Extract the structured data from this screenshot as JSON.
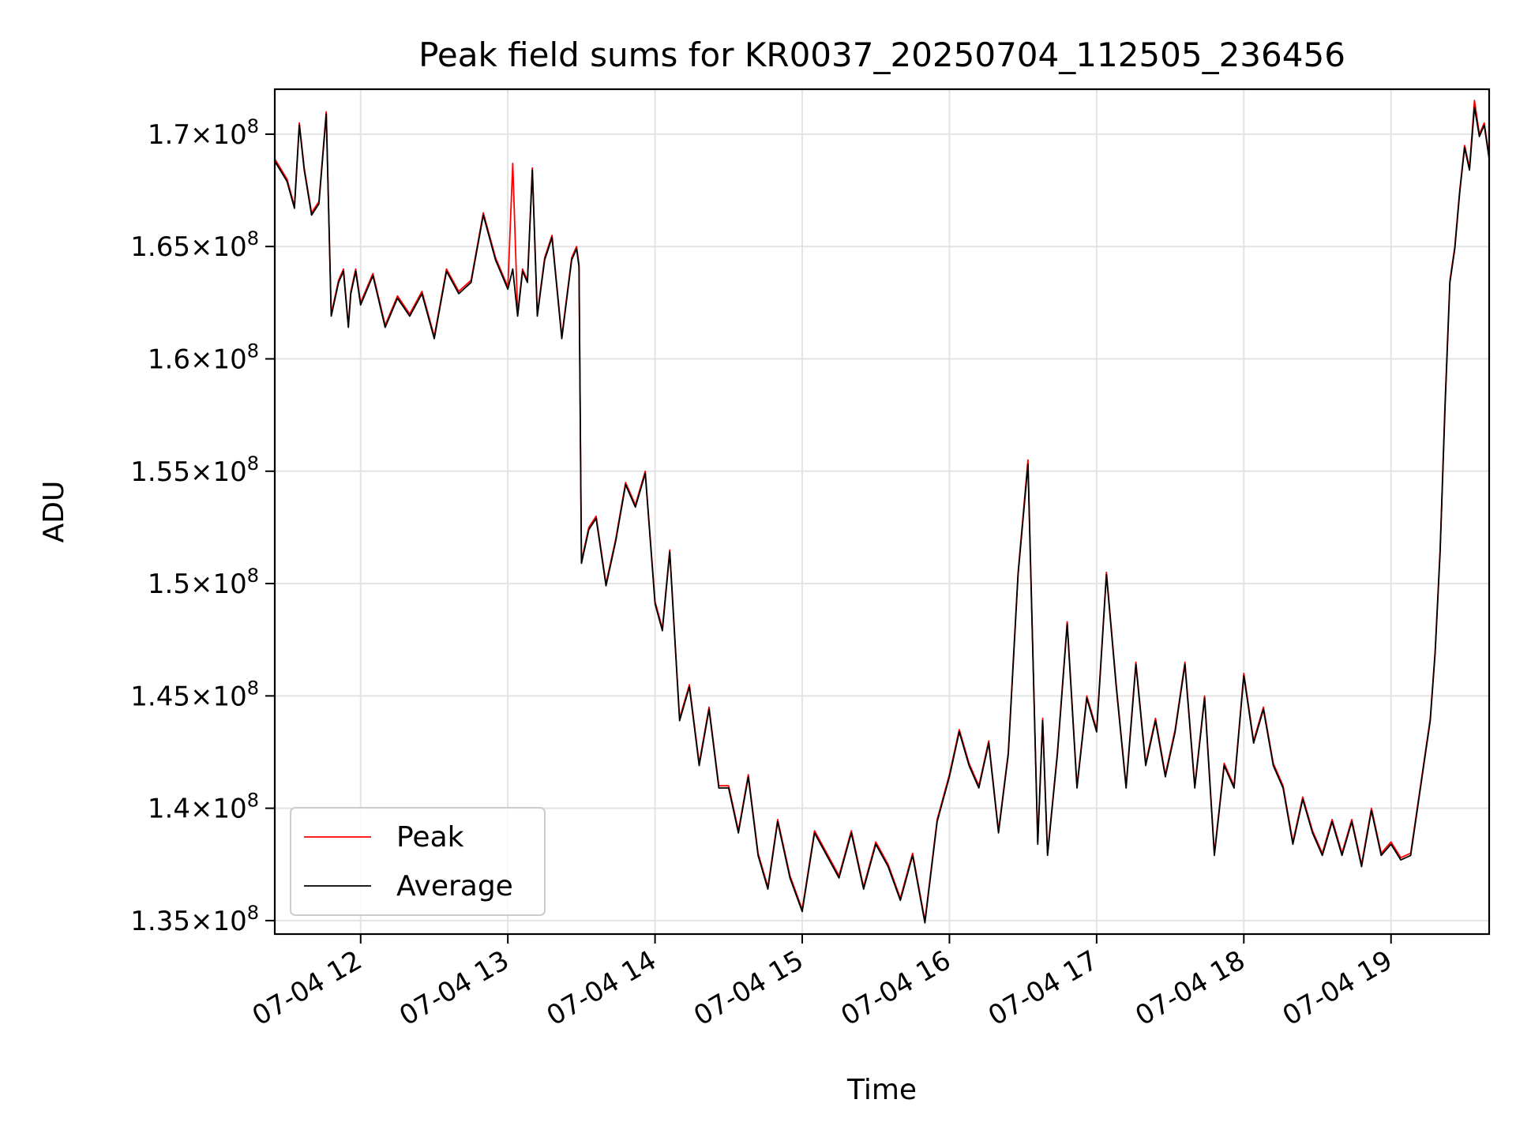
{
  "chart_data": {
    "type": "line",
    "title": "Peak field sums for KR0037_20250704_112505_236456",
    "xlabel": "Time",
    "ylabel": "ADU",
    "grid": true,
    "legend_position": "lower-left",
    "xlim": [
      "2025-07-04 11:25",
      "2025-07-04 19:40"
    ],
    "ylim": [
      134400000,
      172000000
    ],
    "x_ticks": [
      {
        "value": "2025-07-04 12:00",
        "label": "07-04 12"
      },
      {
        "value": "2025-07-04 13:00",
        "label": "07-04 13"
      },
      {
        "value": "2025-07-04 14:00",
        "label": "07-04 14"
      },
      {
        "value": "2025-07-04 15:00",
        "label": "07-04 15"
      },
      {
        "value": "2025-07-04 16:00",
        "label": "07-04 16"
      },
      {
        "value": "2025-07-04 17:00",
        "label": "07-04 17"
      },
      {
        "value": "2025-07-04 18:00",
        "label": "07-04 18"
      },
      {
        "value": "2025-07-04 19:00",
        "label": "07-04 19"
      }
    ],
    "y_ticks": [
      {
        "value": 135000000,
        "mantissa": "1.35",
        "exponent": "8"
      },
      {
        "value": 140000000,
        "mantissa": "1.4",
        "exponent": "8"
      },
      {
        "value": 145000000,
        "mantissa": "1.45",
        "exponent": "8"
      },
      {
        "value": 150000000,
        "mantissa": "1.5",
        "exponent": "8"
      },
      {
        "value": 155000000,
        "mantissa": "1.55",
        "exponent": "8"
      },
      {
        "value": 160000000,
        "mantissa": "1.6",
        "exponent": "8"
      },
      {
        "value": 165000000,
        "mantissa": "1.65",
        "exponent": "8"
      },
      {
        "value": 170000000,
        "mantissa": "1.7",
        "exponent": "8"
      }
    ],
    "series": [
      {
        "name": "Peak",
        "color": "#ff0000",
        "x": [
          "11:25",
          "11:30",
          "11:33",
          "11:35",
          "11:37",
          "11:40",
          "11:43",
          "11:46",
          "11:48",
          "11:51",
          "11:53",
          "11:55",
          "11:56",
          "11:58",
          "12:00",
          "12:05",
          "12:10",
          "12:15",
          "12:20",
          "12:25",
          "12:30",
          "12:35",
          "12:40",
          "12:45",
          "12:50",
          "12:55",
          "13:00",
          "13:02",
          "13:04",
          "13:06",
          "13:08",
          "13:10",
          "13:12",
          "13:15",
          "13:18",
          "13:22",
          "13:26",
          "13:28",
          "13:29",
          "13:30",
          "13:33",
          "13:36",
          "13:40",
          "13:44",
          "13:48",
          "13:52",
          "13:56",
          "14:00",
          "14:03",
          "14:06",
          "14:10",
          "14:14",
          "14:18",
          "14:22",
          "14:26",
          "14:30",
          "14:34",
          "14:38",
          "14:42",
          "14:46",
          "14:50",
          "14:55",
          "15:00",
          "15:05",
          "15:10",
          "15:15",
          "15:20",
          "15:25",
          "15:30",
          "15:35",
          "15:40",
          "15:45",
          "15:50",
          "15:55",
          "16:00",
          "16:04",
          "16:08",
          "16:12",
          "16:16",
          "16:20",
          "16:24",
          "16:28",
          "16:32",
          "16:36",
          "16:38",
          "16:40",
          "16:44",
          "16:48",
          "16:52",
          "16:56",
          "17:00",
          "17:04",
          "17:08",
          "17:12",
          "17:16",
          "17:20",
          "17:24",
          "17:28",
          "17:32",
          "17:36",
          "17:40",
          "17:44",
          "17:48",
          "17:52",
          "17:56",
          "18:00",
          "18:04",
          "18:08",
          "18:12",
          "18:16",
          "18:20",
          "18:24",
          "18:28",
          "18:32",
          "18:36",
          "18:40",
          "18:44",
          "18:48",
          "18:52",
          "18:56",
          "19:00",
          "19:04",
          "19:08",
          "19:10",
          "19:12",
          "19:14",
          "19:16",
          "19:18",
          "19:20",
          "19:22",
          "19:24",
          "19:26",
          "19:28",
          "19:30",
          "19:32",
          "19:34",
          "19:36",
          "19:38",
          "19:40"
        ],
        "y": [
          168900000,
          168000000,
          166800000,
          170500000,
          168500000,
          166500000,
          167000000,
          171000000,
          162000000,
          163500000,
          164000000,
          161500000,
          163000000,
          164000000,
          162500000,
          163800000,
          161500000,
          162800000,
          162000000,
          163000000,
          161000000,
          164000000,
          163000000,
          163500000,
          166500000,
          164500000,
          163200000,
          168700000,
          162000000,
          164000000,
          163500000,
          168500000,
          162000000,
          164500000,
          165500000,
          161000000,
          164500000,
          165000000,
          164200000,
          151000000,
          152500000,
          153000000,
          150000000,
          152000000,
          154500000,
          153500000,
          155000000,
          149200000,
          148000000,
          151500000,
          144000000,
          145500000,
          142000000,
          144500000,
          141000000,
          141000000,
          139000000,
          141500000,
          138000000,
          136500000,
          139500000,
          137000000,
          135500000,
          139000000,
          138000000,
          137000000,
          139000000,
          136500000,
          138500000,
          137500000,
          136000000,
          138000000,
          135000000,
          139500000,
          141500000,
          143500000,
          142000000,
          141000000,
          143000000,
          139000000,
          142500000,
          150500000,
          155500000,
          138500000,
          144000000,
          138000000,
          142500000,
          148300000,
          141000000,
          145000000,
          143500000,
          150500000,
          145500000,
          141000000,
          146500000,
          142000000,
          144000000,
          141500000,
          143500000,
          146500000,
          141000000,
          145000000,
          138000000,
          142000000,
          141000000,
          146000000,
          143000000,
          144500000,
          142000000,
          141000000,
          138500000,
          140500000,
          139000000,
          138000000,
          139500000,
          138000000,
          139500000,
          137500000,
          140000000,
          138000000,
          138500000,
          137800000,
          138000000,
          139500000,
          141000000,
          142500000,
          144000000,
          147000000,
          151500000,
          158000000,
          163500000,
          165000000,
          167500000,
          169500000,
          168500000,
          171500000,
          170000000,
          170500000,
          169000000
        ]
      },
      {
        "name": "Average",
        "color": "#000000",
        "x": [
          "11:25",
          "11:30",
          "11:33",
          "11:35",
          "11:37",
          "11:40",
          "11:43",
          "11:46",
          "11:48",
          "11:51",
          "11:53",
          "11:55",
          "11:56",
          "11:58",
          "12:00",
          "12:05",
          "12:10",
          "12:15",
          "12:20",
          "12:25",
          "12:30",
          "12:35",
          "12:40",
          "12:45",
          "12:50",
          "12:55",
          "13:00",
          "13:02",
          "13:04",
          "13:06",
          "13:08",
          "13:10",
          "13:12",
          "13:15",
          "13:18",
          "13:22",
          "13:26",
          "13:28",
          "13:29",
          "13:30",
          "13:33",
          "13:36",
          "13:40",
          "13:44",
          "13:48",
          "13:52",
          "13:56",
          "14:00",
          "14:03",
          "14:06",
          "14:10",
          "14:14",
          "14:18",
          "14:22",
          "14:26",
          "14:30",
          "14:34",
          "14:38",
          "14:42",
          "14:46",
          "14:50",
          "14:55",
          "15:00",
          "15:05",
          "15:10",
          "15:15",
          "15:20",
          "15:25",
          "15:30",
          "15:35",
          "15:40",
          "15:45",
          "15:50",
          "15:55",
          "16:00",
          "16:04",
          "16:08",
          "16:12",
          "16:16",
          "16:20",
          "16:24",
          "16:28",
          "16:32",
          "16:36",
          "16:38",
          "16:40",
          "16:44",
          "16:48",
          "16:52",
          "16:56",
          "17:00",
          "17:04",
          "17:08",
          "17:12",
          "17:16",
          "17:20",
          "17:24",
          "17:28",
          "17:32",
          "17:36",
          "17:40",
          "17:44",
          "17:48",
          "17:52",
          "17:56",
          "18:00",
          "18:04",
          "18:08",
          "18:12",
          "18:16",
          "18:20",
          "18:24",
          "18:28",
          "18:32",
          "18:36",
          "18:40",
          "18:44",
          "18:48",
          "18:52",
          "18:56",
          "19:00",
          "19:04",
          "19:08",
          "19:10",
          "19:12",
          "19:14",
          "19:16",
          "19:18",
          "19:20",
          "19:22",
          "19:24",
          "19:26",
          "19:28",
          "19:30",
          "19:32",
          "19:34",
          "19:36",
          "19:38",
          "19:40"
        ],
        "y": [
          168800000,
          167900000,
          166700000,
          170400000,
          168400000,
          166400000,
          166900000,
          170900000,
          161900000,
          163400000,
          163900000,
          161400000,
          162900000,
          163900000,
          162400000,
          163700000,
          161400000,
          162700000,
          161900000,
          162900000,
          160900000,
          163900000,
          162900000,
          163400000,
          166400000,
          164400000,
          163100000,
          164000000,
          161900000,
          163900000,
          163400000,
          168400000,
          161900000,
          164400000,
          165400000,
          160900000,
          164400000,
          164900000,
          164100000,
          150900000,
          152400000,
          152900000,
          149900000,
          151900000,
          154400000,
          153400000,
          154900000,
          149100000,
          147900000,
          151400000,
          143900000,
          145400000,
          141900000,
          144400000,
          140900000,
          140900000,
          138900000,
          141400000,
          137900000,
          136400000,
          139400000,
          136900000,
          135400000,
          138900000,
          137900000,
          136900000,
          138900000,
          136400000,
          138400000,
          137400000,
          135900000,
          137900000,
          134900000,
          139400000,
          141400000,
          143400000,
          141900000,
          140900000,
          142900000,
          138900000,
          142400000,
          150400000,
          155300000,
          138400000,
          143900000,
          137900000,
          142400000,
          148200000,
          140900000,
          144900000,
          143400000,
          150400000,
          145400000,
          140900000,
          146400000,
          141900000,
          143900000,
          141400000,
          143400000,
          146400000,
          140900000,
          144900000,
          137900000,
          141900000,
          140900000,
          145900000,
          142900000,
          144400000,
          141900000,
          140900000,
          138400000,
          140400000,
          138900000,
          137900000,
          139400000,
          137900000,
          139400000,
          137400000,
          139900000,
          137900000,
          138400000,
          137700000,
          137900000,
          139400000,
          140900000,
          142400000,
          143900000,
          146900000,
          151400000,
          157800000,
          163400000,
          164900000,
          167400000,
          169400000,
          168400000,
          171200000,
          169900000,
          170400000,
          168900000
        ]
      }
    ]
  }
}
